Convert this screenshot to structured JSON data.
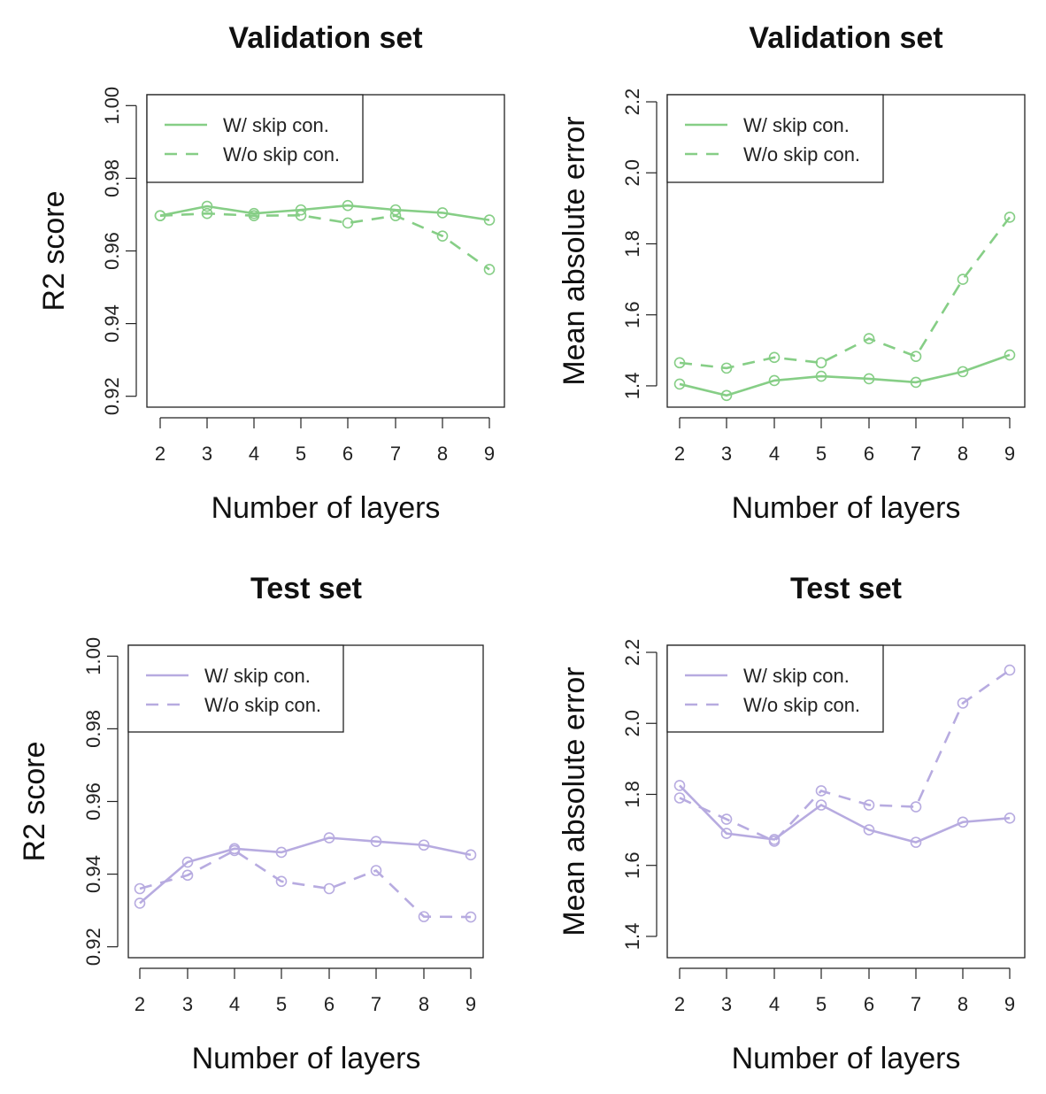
{
  "colors": {
    "validation": "#86ce86",
    "test": "#b7abe0",
    "axis": "#222222",
    "legend_border": "#222222"
  },
  "chart_data": [
    {
      "type": "line",
      "title": "Validation set",
      "xlabel": "Number of layers",
      "ylabel": "R2 score",
      "x": [
        2,
        3,
        4,
        5,
        6,
        7,
        8,
        9
      ],
      "xticks": [
        "2",
        "3",
        "4",
        "5",
        "6",
        "7",
        "8",
        "9"
      ],
      "ylim": [
        0.917,
        1.003
      ],
      "yticks": [
        "0.92",
        "0.94",
        "0.96",
        "0.98",
        "1.00"
      ],
      "yticks_values": [
        0.92,
        0.94,
        0.96,
        0.98,
        1.0
      ],
      "color": "validation",
      "legend": "top-left",
      "series": [
        {
          "name": "W/ skip con.",
          "dash": "solid",
          "values": [
            0.9697,
            0.9723,
            0.9703,
            0.9713,
            0.9725,
            0.9713,
            0.9705,
            0.9685
          ]
        },
        {
          "name": "W/o skip con.",
          "dash": "dashed",
          "values": [
            0.9697,
            0.9703,
            0.9697,
            0.9698,
            0.9677,
            0.9697,
            0.9641,
            0.9549
          ]
        }
      ]
    },
    {
      "type": "line",
      "title": "Validation set",
      "xlabel": "Number of layers",
      "ylabel": "Mean absolute error",
      "x": [
        2,
        3,
        4,
        5,
        6,
        7,
        8,
        9
      ],
      "xticks": [
        "2",
        "3",
        "4",
        "5",
        "6",
        "7",
        "8",
        "9"
      ],
      "ylim": [
        1.34,
        2.22
      ],
      "yticks": [
        "1.4",
        "1.6",
        "1.8",
        "2.0",
        "2.2"
      ],
      "yticks_values": [
        1.4,
        1.6,
        1.8,
        2.0,
        2.2
      ],
      "color": "validation",
      "legend": "top-left",
      "series": [
        {
          "name": "W/ skip con.",
          "dash": "solid",
          "values": [
            1.405,
            1.373,
            1.415,
            1.427,
            1.42,
            1.41,
            1.44,
            1.487
          ]
        },
        {
          "name": "W/o skip con.",
          "dash": "dashed",
          "values": [
            1.465,
            1.45,
            1.48,
            1.465,
            1.533,
            1.483,
            1.7,
            1.875
          ]
        }
      ]
    },
    {
      "type": "line",
      "title": "Test set",
      "xlabel": "Number of layers",
      "ylabel": "R2 score",
      "x": [
        2,
        3,
        4,
        5,
        6,
        7,
        8,
        9
      ],
      "xticks": [
        "2",
        "3",
        "4",
        "5",
        "6",
        "7",
        "8",
        "9"
      ],
      "ylim": [
        0.917,
        1.003
      ],
      "yticks": [
        "0.92",
        "0.94",
        "0.96",
        "0.98",
        "1.00"
      ],
      "yticks_values": [
        0.92,
        0.94,
        0.96,
        0.98,
        1.0
      ],
      "color": "test",
      "legend": "top-left",
      "series": [
        {
          "name": "W/ skip con.",
          "dash": "solid",
          "values": [
            0.932,
            0.9433,
            0.947,
            0.946,
            0.95,
            0.949,
            0.948,
            0.9453
          ]
        },
        {
          "name": "W/o skip con.",
          "dash": "dashed",
          "values": [
            0.936,
            0.9397,
            0.9465,
            0.938,
            0.936,
            0.941,
            0.9283,
            0.9282
          ]
        }
      ]
    },
    {
      "type": "line",
      "title": "Test set",
      "xlabel": "Number of layers",
      "ylabel": "Mean absolute error",
      "x": [
        2,
        3,
        4,
        5,
        6,
        7,
        8,
        9
      ],
      "xticks": [
        "2",
        "3",
        "4",
        "5",
        "6",
        "7",
        "8",
        "9"
      ],
      "ylim": [
        1.34,
        2.22
      ],
      "yticks": [
        "1.4",
        "1.6",
        "1.8",
        "2.0",
        "2.2"
      ],
      "yticks_values": [
        1.4,
        1.6,
        1.8,
        2.0,
        2.2
      ],
      "color": "test",
      "legend": "top-left",
      "series": [
        {
          "name": "W/ skip con.",
          "dash": "solid",
          "values": [
            1.825,
            1.69,
            1.673,
            1.77,
            1.7,
            1.665,
            1.722,
            1.733
          ]
        },
        {
          "name": "W/o skip con.",
          "dash": "dashed",
          "values": [
            1.79,
            1.73,
            1.668,
            1.81,
            1.77,
            1.765,
            2.057,
            2.15
          ]
        }
      ]
    }
  ]
}
